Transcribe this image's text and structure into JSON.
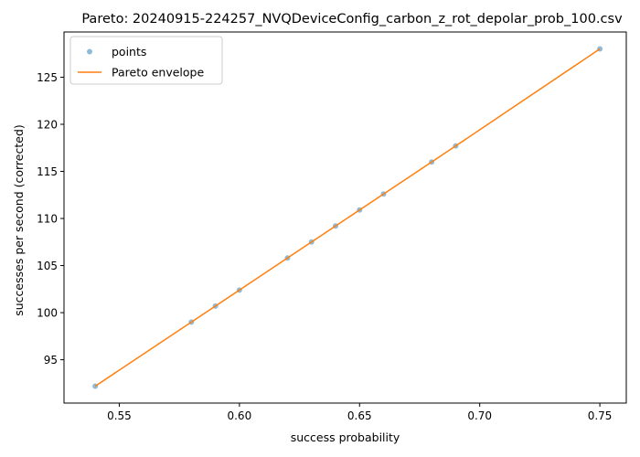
{
  "chart_data": {
    "type": "scatter",
    "title": "Pareto: 20240915-224257_NVQDeviceConfig_carbon_z_rot_depolar_prob_100.csv",
    "xlabel": "success probability",
    "ylabel": "successes per second (corrected)",
    "xlim": [
      0.527,
      0.761
    ],
    "ylim": [
      90.4,
      129.8
    ],
    "x_ticks": [
      0.55,
      0.6,
      0.65,
      0.7,
      0.75
    ],
    "x_tick_labels": [
      "0.55",
      "0.60",
      "0.65",
      "0.70",
      "0.75"
    ],
    "y_ticks": [
      95,
      100,
      105,
      110,
      115,
      120,
      125
    ],
    "y_tick_labels": [
      "95",
      "100",
      "105",
      "110",
      "115",
      "120",
      "125"
    ],
    "grid": false,
    "legend": {
      "placement": "upper-left",
      "entries": [
        "points",
        "Pareto envelope"
      ]
    },
    "series": [
      {
        "name": "points",
        "kind": "scatter",
        "color": "#1f77b4",
        "x": [
          0.54,
          0.58,
          0.59,
          0.6,
          0.62,
          0.63,
          0.64,
          0.65,
          0.66,
          0.68,
          0.69,
          0.75
        ],
        "y": [
          92.2,
          99.0,
          100.7,
          102.4,
          105.8,
          107.5,
          109.2,
          110.9,
          112.6,
          116.0,
          117.7,
          128.0
        ]
      },
      {
        "name": "Pareto envelope",
        "kind": "line",
        "color": "#ff7f0e",
        "x": [
          0.54,
          0.58,
          0.59,
          0.6,
          0.62,
          0.63,
          0.64,
          0.65,
          0.66,
          0.68,
          0.69,
          0.75
        ],
        "y": [
          92.2,
          99.0,
          100.7,
          102.4,
          105.8,
          107.5,
          109.2,
          110.9,
          112.6,
          116.0,
          117.7,
          128.0
        ]
      }
    ]
  }
}
